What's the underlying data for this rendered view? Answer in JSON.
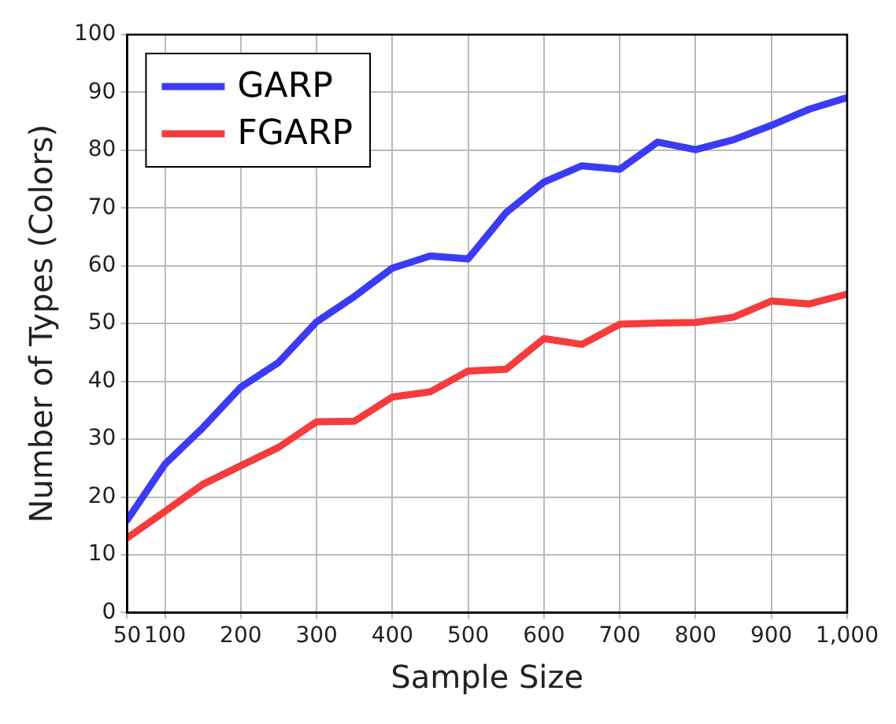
{
  "chart_data": {
    "type": "line",
    "xlabel": "Sample Size",
    "ylabel": "Number of Types (Colors)",
    "x": [
      50,
      100,
      150,
      200,
      250,
      300,
      350,
      400,
      450,
      500,
      550,
      600,
      650,
      700,
      750,
      800,
      850,
      900,
      950,
      1000
    ],
    "series": [
      {
        "name": "GARP",
        "color": "#3b3bf5",
        "values": [
          16,
          25.7,
          32,
          39,
          43.3,
          50.3,
          54.7,
          59.6,
          61.7,
          61.2,
          69.2,
          74.5,
          77.3,
          76.7,
          81.4,
          80.1,
          81.8,
          84.3,
          87.1,
          89.1
        ]
      },
      {
        "name": "FGARP",
        "color": "#f53b3b",
        "values": [
          12.9,
          17.5,
          22.2,
          25.4,
          28.6,
          33,
          33.1,
          37.3,
          38.2,
          41.8,
          42.1,
          47.4,
          46.4,
          49.9,
          50.1,
          50.2,
          51.1,
          53.9,
          53.4,
          55.1
        ]
      }
    ],
    "xlim": [
      50,
      1000
    ],
    "xticks": [
      50,
      100,
      200,
      300,
      400,
      500,
      600,
      700,
      800,
      900,
      {
        "value": 1000,
        "label": "1,000"
      }
    ],
    "ylim": [
      0,
      100
    ],
    "yticks": [
      0,
      10,
      20,
      30,
      40,
      50,
      60,
      70,
      80,
      90,
      100
    ],
    "grid": true,
    "legend": "top left",
    "marker": "none",
    "line_style": "solid"
  }
}
